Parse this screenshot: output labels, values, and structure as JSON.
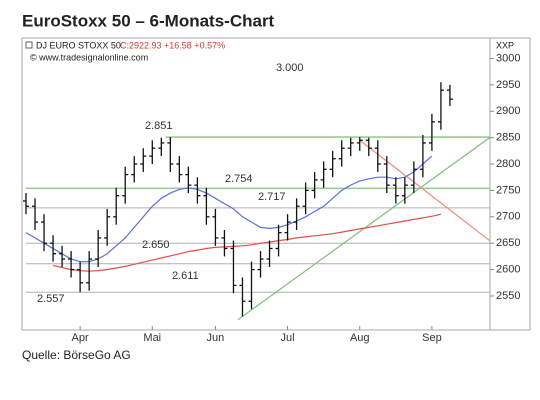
{
  "chart_data": {
    "type": "ohlc",
    "title": "EuroStoxx 50 – 6-Monats-Chart",
    "instrument": "DJ EURO STOXX 50",
    "quote": "C:2922.93 +16.58 +0.57%",
    "copyright": "© www.tradesignalonline.com",
    "axis_label": "XXP",
    "source": "Quelle: BörseGo AG",
    "bar_color": "#111111",
    "categories": [
      null,
      null,
      null,
      null,
      null,
      null,
      "Apr",
      null,
      null,
      null,
      null,
      null,
      null,
      null,
      "Mai",
      null,
      null,
      null,
      null,
      null,
      null,
      "Jun",
      null,
      null,
      null,
      null,
      null,
      null,
      null,
      "Jul",
      null,
      null,
      null,
      null,
      null,
      null,
      null,
      "Aug",
      null,
      null,
      null,
      null,
      null,
      null,
      null,
      "Sep",
      null,
      null
    ],
    "open": [
      2730,
      2720,
      2690,
      2650,
      2630,
      2620,
      2600,
      2575,
      2620,
      2660,
      2700,
      2740,
      2780,
      2800,
      2815,
      2830,
      2840,
      2800,
      2780,
      2760,
      2740,
      2700,
      2660,
      2640,
      2570,
      2540,
      2600,
      2620,
      2640,
      2670,
      2690,
      2720,
      2750,
      2770,
      2790,
      2810,
      2830,
      2840,
      2845,
      2830,
      2800,
      2760,
      2740,
      2760,
      2790,
      2840,
      2880,
      2940
    ],
    "high": [
      2745,
      2735,
      2705,
      2665,
      2645,
      2635,
      2615,
      2635,
      2675,
      2715,
      2755,
      2795,
      2815,
      2830,
      2845,
      2850,
      2851,
      2815,
      2795,
      2775,
      2755,
      2715,
      2675,
      2655,
      2585,
      2615,
      2635,
      2655,
      2685,
      2705,
      2735,
      2765,
      2785,
      2805,
      2825,
      2845,
      2850,
      2851,
      2850,
      2845,
      2815,
      2775,
      2775,
      2805,
      2855,
      2895,
      2955,
      2950
    ],
    "low": [
      2705,
      2675,
      2635,
      2615,
      2605,
      2585,
      2557,
      2560,
      2605,
      2645,
      2685,
      2725,
      2765,
      2785,
      2800,
      2815,
      2785,
      2765,
      2745,
      2725,
      2685,
      2645,
      2625,
      2555,
      2511,
      2525,
      2585,
      2605,
      2625,
      2655,
      2675,
      2705,
      2735,
      2755,
      2775,
      2795,
      2815,
      2825,
      2815,
      2785,
      2745,
      2725,
      2725,
      2745,
      2775,
      2825,
      2865,
      2910
    ],
    "close": [
      2720,
      2690,
      2650,
      2630,
      2620,
      2600,
      2575,
      2620,
      2660,
      2700,
      2740,
      2780,
      2800,
      2815,
      2830,
      2840,
      2800,
      2780,
      2760,
      2740,
      2700,
      2660,
      2640,
      2570,
      2540,
      2600,
      2620,
      2640,
      2670,
      2690,
      2720,
      2750,
      2770,
      2790,
      2810,
      2830,
      2840,
      2845,
      2830,
      2800,
      2760,
      2740,
      2760,
      2790,
      2840,
      2880,
      2940,
      2922.93
    ],
    "series": [
      {
        "color": "#5b6fe0",
        "values": [
          2670,
          2660,
          2650,
          2640,
          2630,
          2620,
          2615,
          2615,
          2620,
          2630,
          2645,
          2660,
          2680,
          2700,
          2720,
          2735,
          2745,
          2752,
          2755,
          2752,
          2745,
          2735,
          2725,
          2715,
          2700,
          2690,
          2680,
          2678,
          2680,
          2685,
          2692,
          2700,
          2710,
          2720,
          2735,
          2750,
          2760,
          2768,
          2772,
          2775,
          2775,
          2772,
          2775,
          2785,
          2800,
          2815,
          null,
          null
        ]
      },
      {
        "color": "#e0504a",
        "values": [
          null,
          null,
          null,
          2608,
          2604,
          2600,
          2598,
          2597,
          2598,
          2600,
          2603,
          2606,
          2610,
          2614,
          2618,
          2622,
          2626,
          2630,
          2634,
          2637,
          2640,
          2642,
          2643,
          2644,
          2645,
          2647,
          2650,
          2652,
          2655,
          2657,
          2660,
          2662,
          2664,
          2666,
          2668,
          2671,
          2674,
          2677,
          2680,
          2683,
          2686,
          2689,
          2692,
          2695,
          2698,
          2701,
          2705,
          null
        ]
      }
    ],
    "levels": [
      {
        "value": 3000,
        "label": "3.000",
        "line": false
      },
      {
        "value": 2851,
        "label": "2.851",
        "line": true,
        "start": 15.5,
        "color": "#9ccc94"
      },
      {
        "value": 2754,
        "label": "2.754",
        "line": true,
        "start": 0,
        "color": "#9ccc94"
      },
      {
        "value": 2717,
        "label": "2.717",
        "line": true,
        "start": 0,
        "color": "#b0b0b0"
      },
      {
        "value": 2650,
        "label": "2.650",
        "line": true,
        "start": 0,
        "color": "#b0b0b0"
      },
      {
        "value": 2611,
        "label": "2.611",
        "line": true,
        "start": 0,
        "color": "#b0b0b0"
      },
      {
        "value": 2557,
        "label": "2.557",
        "line": true,
        "start": 0,
        "color": "#b0b0b0"
      }
    ],
    "trendlines": [
      {
        "color": "#7cc07a",
        "points": [
          [
            23.5,
            2505
          ],
          [
            51.4,
            2850
          ]
        ]
      },
      {
        "color": "#f08a80",
        "points": [
          [
            37,
            2845
          ],
          [
            51.4,
            2655
          ]
        ]
      }
    ],
    "ylim": [
      2495,
      3035
    ],
    "yticks": [
      2550,
      2600,
      2650,
      2700,
      2750,
      2800,
      2850,
      2900,
      2950,
      3000
    ]
  }
}
